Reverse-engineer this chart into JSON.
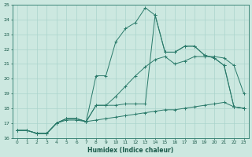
{
  "xlabel": "Humidex (Indice chaleur)",
  "bg_color": "#cce8e0",
  "grid_color": "#aad4cc",
  "line_color": "#2a7a6a",
  "xlim": [
    -0.5,
    23.5
  ],
  "ylim": [
    16,
    25
  ],
  "xticks": [
    0,
    1,
    2,
    3,
    4,
    5,
    6,
    7,
    8,
    9,
    10,
    11,
    12,
    13,
    14,
    15,
    16,
    17,
    18,
    19,
    20,
    21,
    22,
    23
  ],
  "yticks": [
    16,
    17,
    18,
    19,
    20,
    21,
    22,
    23,
    24,
    25
  ],
  "series": [
    {
      "x": [
        0,
        1,
        2,
        3,
        4,
        5,
        6,
        7,
        8,
        9,
        10,
        11,
        12,
        13,
        14,
        15,
        16,
        17,
        18,
        19,
        20,
        21,
        22,
        23
      ],
      "y": [
        16.5,
        16.5,
        16.3,
        16.3,
        17.0,
        17.3,
        17.3,
        17.1,
        20.2,
        20.2,
        22.5,
        23.4,
        23.8,
        24.8,
        24.3,
        21.8,
        21.8,
        22.2,
        22.2,
        21.6,
        21.4,
        20.9,
        18.1,
        18.0
      ]
    },
    {
      "x": [
        0,
        1,
        2,
        3,
        4,
        5,
        6,
        7,
        8,
        9,
        10,
        11,
        12,
        13,
        14,
        15,
        16,
        17,
        18,
        19,
        20,
        21,
        22,
        23
      ],
      "y": [
        16.5,
        16.5,
        16.3,
        16.3,
        17.0,
        17.3,
        17.3,
        17.1,
        18.2,
        18.2,
        18.2,
        18.3,
        18.3,
        18.3,
        24.3,
        21.8,
        21.8,
        22.2,
        22.2,
        21.6,
        21.4,
        20.9,
        18.1,
        18.0
      ]
    },
    {
      "x": [
        0,
        1,
        2,
        3,
        4,
        5,
        6,
        7,
        8,
        9,
        10,
        11,
        12,
        13,
        14,
        15,
        16,
        17,
        18,
        19,
        20,
        21,
        22,
        23
      ],
      "y": [
        16.5,
        16.5,
        16.3,
        16.3,
        17.0,
        17.3,
        17.3,
        17.1,
        18.2,
        18.2,
        18.8,
        19.5,
        20.2,
        20.8,
        21.3,
        21.5,
        21.0,
        21.2,
        21.5,
        21.5,
        21.5,
        21.4,
        20.9,
        19.0
      ]
    },
    {
      "x": [
        0,
        1,
        2,
        3,
        4,
        5,
        6,
        7,
        8,
        9,
        10,
        11,
        12,
        13,
        14,
        15,
        16,
        17,
        18,
        19,
        20,
        21,
        22,
        23
      ],
      "y": [
        16.5,
        16.5,
        16.3,
        16.3,
        17.0,
        17.2,
        17.2,
        17.1,
        17.2,
        17.3,
        17.4,
        17.5,
        17.6,
        17.7,
        17.8,
        17.9,
        17.9,
        18.0,
        18.1,
        18.2,
        18.3,
        18.4,
        18.1,
        18.0
      ]
    }
  ]
}
